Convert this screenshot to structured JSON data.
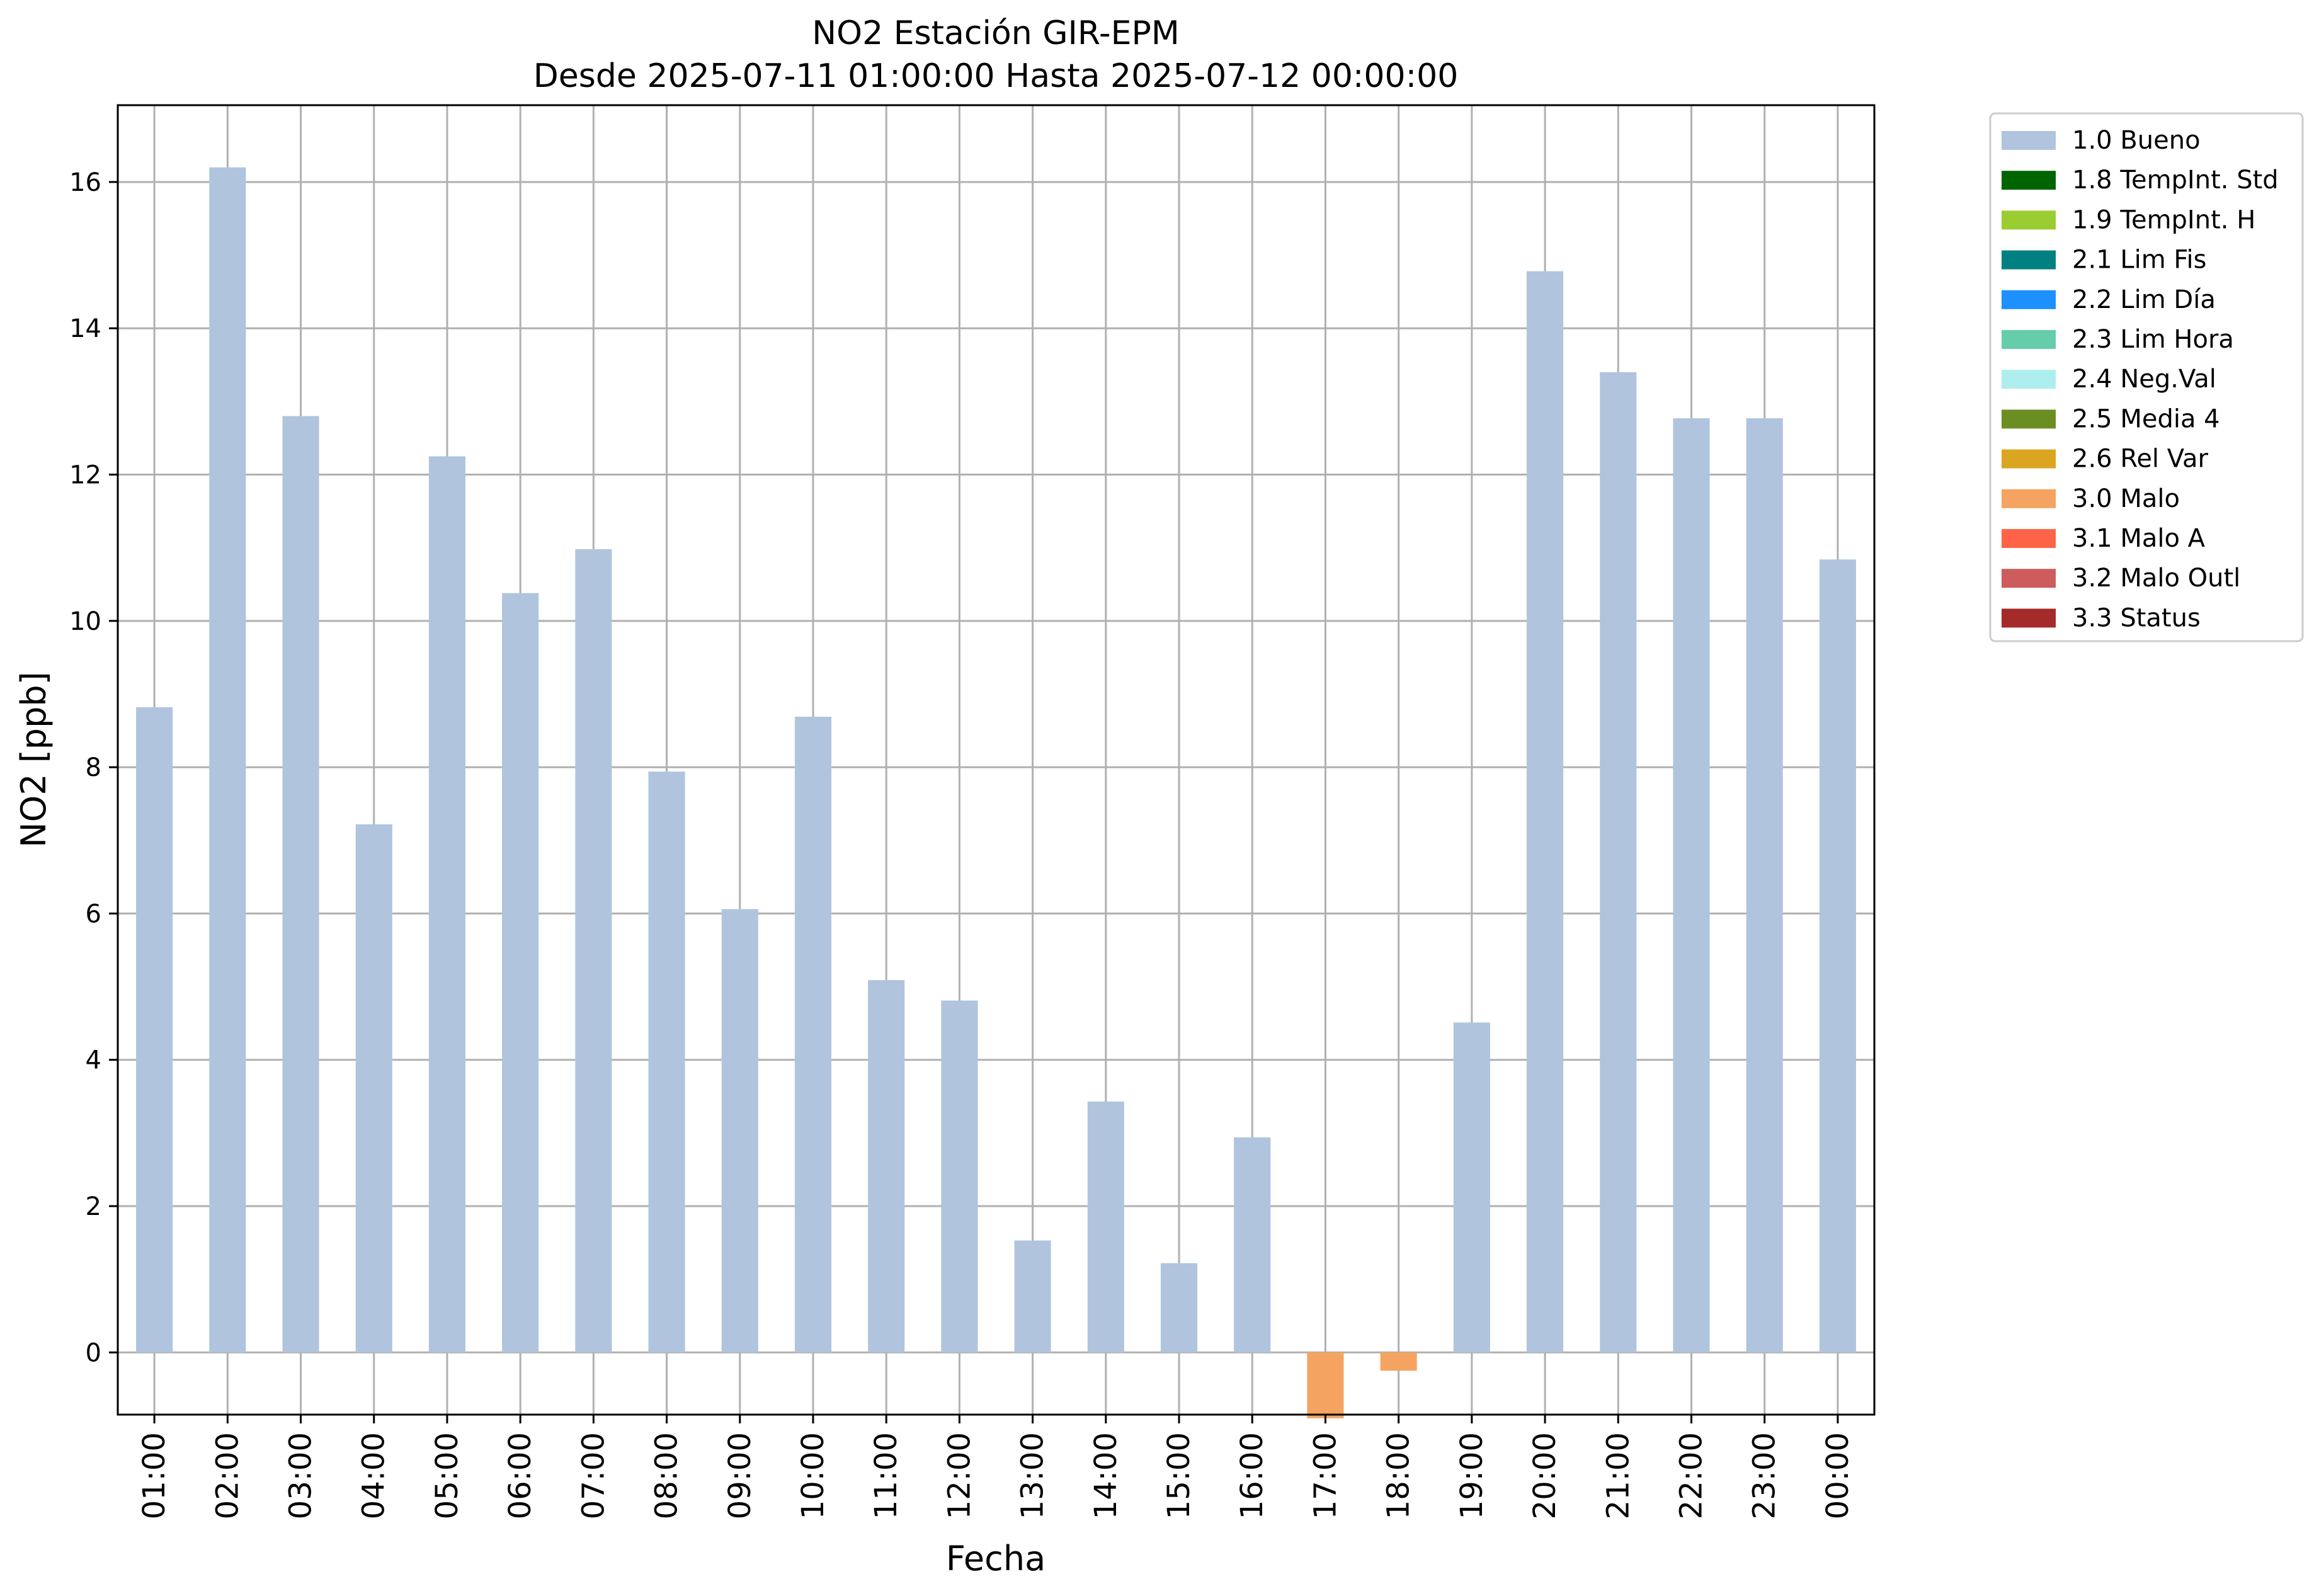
{
  "chart_data": {
    "type": "bar",
    "title": "NO2 Estación GIR-EPM",
    "subtitle": "Desde 2025-07-11 01:00:00 Hasta 2025-07-12 00:00:00",
    "xlabel": "Fecha",
    "ylabel": "NO2 [ppb]",
    "ylim": [
      -0.85,
      17.05
    ],
    "yticks": [
      0,
      2,
      4,
      6,
      8,
      10,
      12,
      14,
      16
    ],
    "grid": true,
    "legend_position": "outside-right",
    "categories": [
      "01:00",
      "02:00",
      "03:00",
      "04:00",
      "05:00",
      "06:00",
      "07:00",
      "08:00",
      "09:00",
      "10:00",
      "11:00",
      "12:00",
      "13:00",
      "14:00",
      "15:00",
      "16:00",
      "17:00",
      "18:00",
      "19:00",
      "20:00",
      "21:00",
      "22:00",
      "23:00",
      "00:00"
    ],
    "values": [
      8.82,
      16.2,
      12.8,
      7.22,
      12.25,
      10.38,
      10.98,
      7.94,
      6.06,
      8.69,
      5.09,
      4.81,
      1.53,
      3.43,
      1.22,
      2.94,
      -0.9,
      -0.25,
      4.51,
      14.78,
      13.4,
      12.77,
      12.77,
      10.84
    ],
    "bar_quality": [
      "1.0 Bueno",
      "1.0 Bueno",
      "1.0 Bueno",
      "1.0 Bueno",
      "1.0 Bueno",
      "1.0 Bueno",
      "1.0 Bueno",
      "1.0 Bueno",
      "1.0 Bueno",
      "1.0 Bueno",
      "1.0 Bueno",
      "1.0 Bueno",
      "1.0 Bueno",
      "1.0 Bueno",
      "1.0 Bueno",
      "1.0 Bueno",
      "3.0 Malo",
      "3.0 Malo",
      "1.0 Bueno",
      "1.0 Bueno",
      "1.0 Bueno",
      "1.0 Bueno",
      "1.0 Bueno",
      "1.0 Bueno"
    ],
    "legend": [
      {
        "label": "1.0 Bueno",
        "color": "#b0c4de"
      },
      {
        "label": "1.8 TempInt. Std",
        "color": "#006400"
      },
      {
        "label": "1.9 TempInt. H",
        "color": "#9acd32"
      },
      {
        "label": "2.1 Lim Fis",
        "color": "#008080"
      },
      {
        "label": "2.2 Lim Día",
        "color": "#1e90ff"
      },
      {
        "label": "2.3 Lim Hora",
        "color": "#66cdaa"
      },
      {
        "label": "2.4 Neg.Val",
        "color": "#afeeee"
      },
      {
        "label": "2.5 Media 4",
        "color": "#6b8e23"
      },
      {
        "label": "2.6 Rel Var",
        "color": "#daa520"
      },
      {
        "label": "3.0 Malo",
        "color": "#f4a460"
      },
      {
        "label": "3.1 Malo A",
        "color": "#ff6347"
      },
      {
        "label": "3.2 Malo Outl",
        "color": "#cd5c5c"
      },
      {
        "label": "3.3 Status",
        "color": "#a52a2a"
      }
    ]
  }
}
